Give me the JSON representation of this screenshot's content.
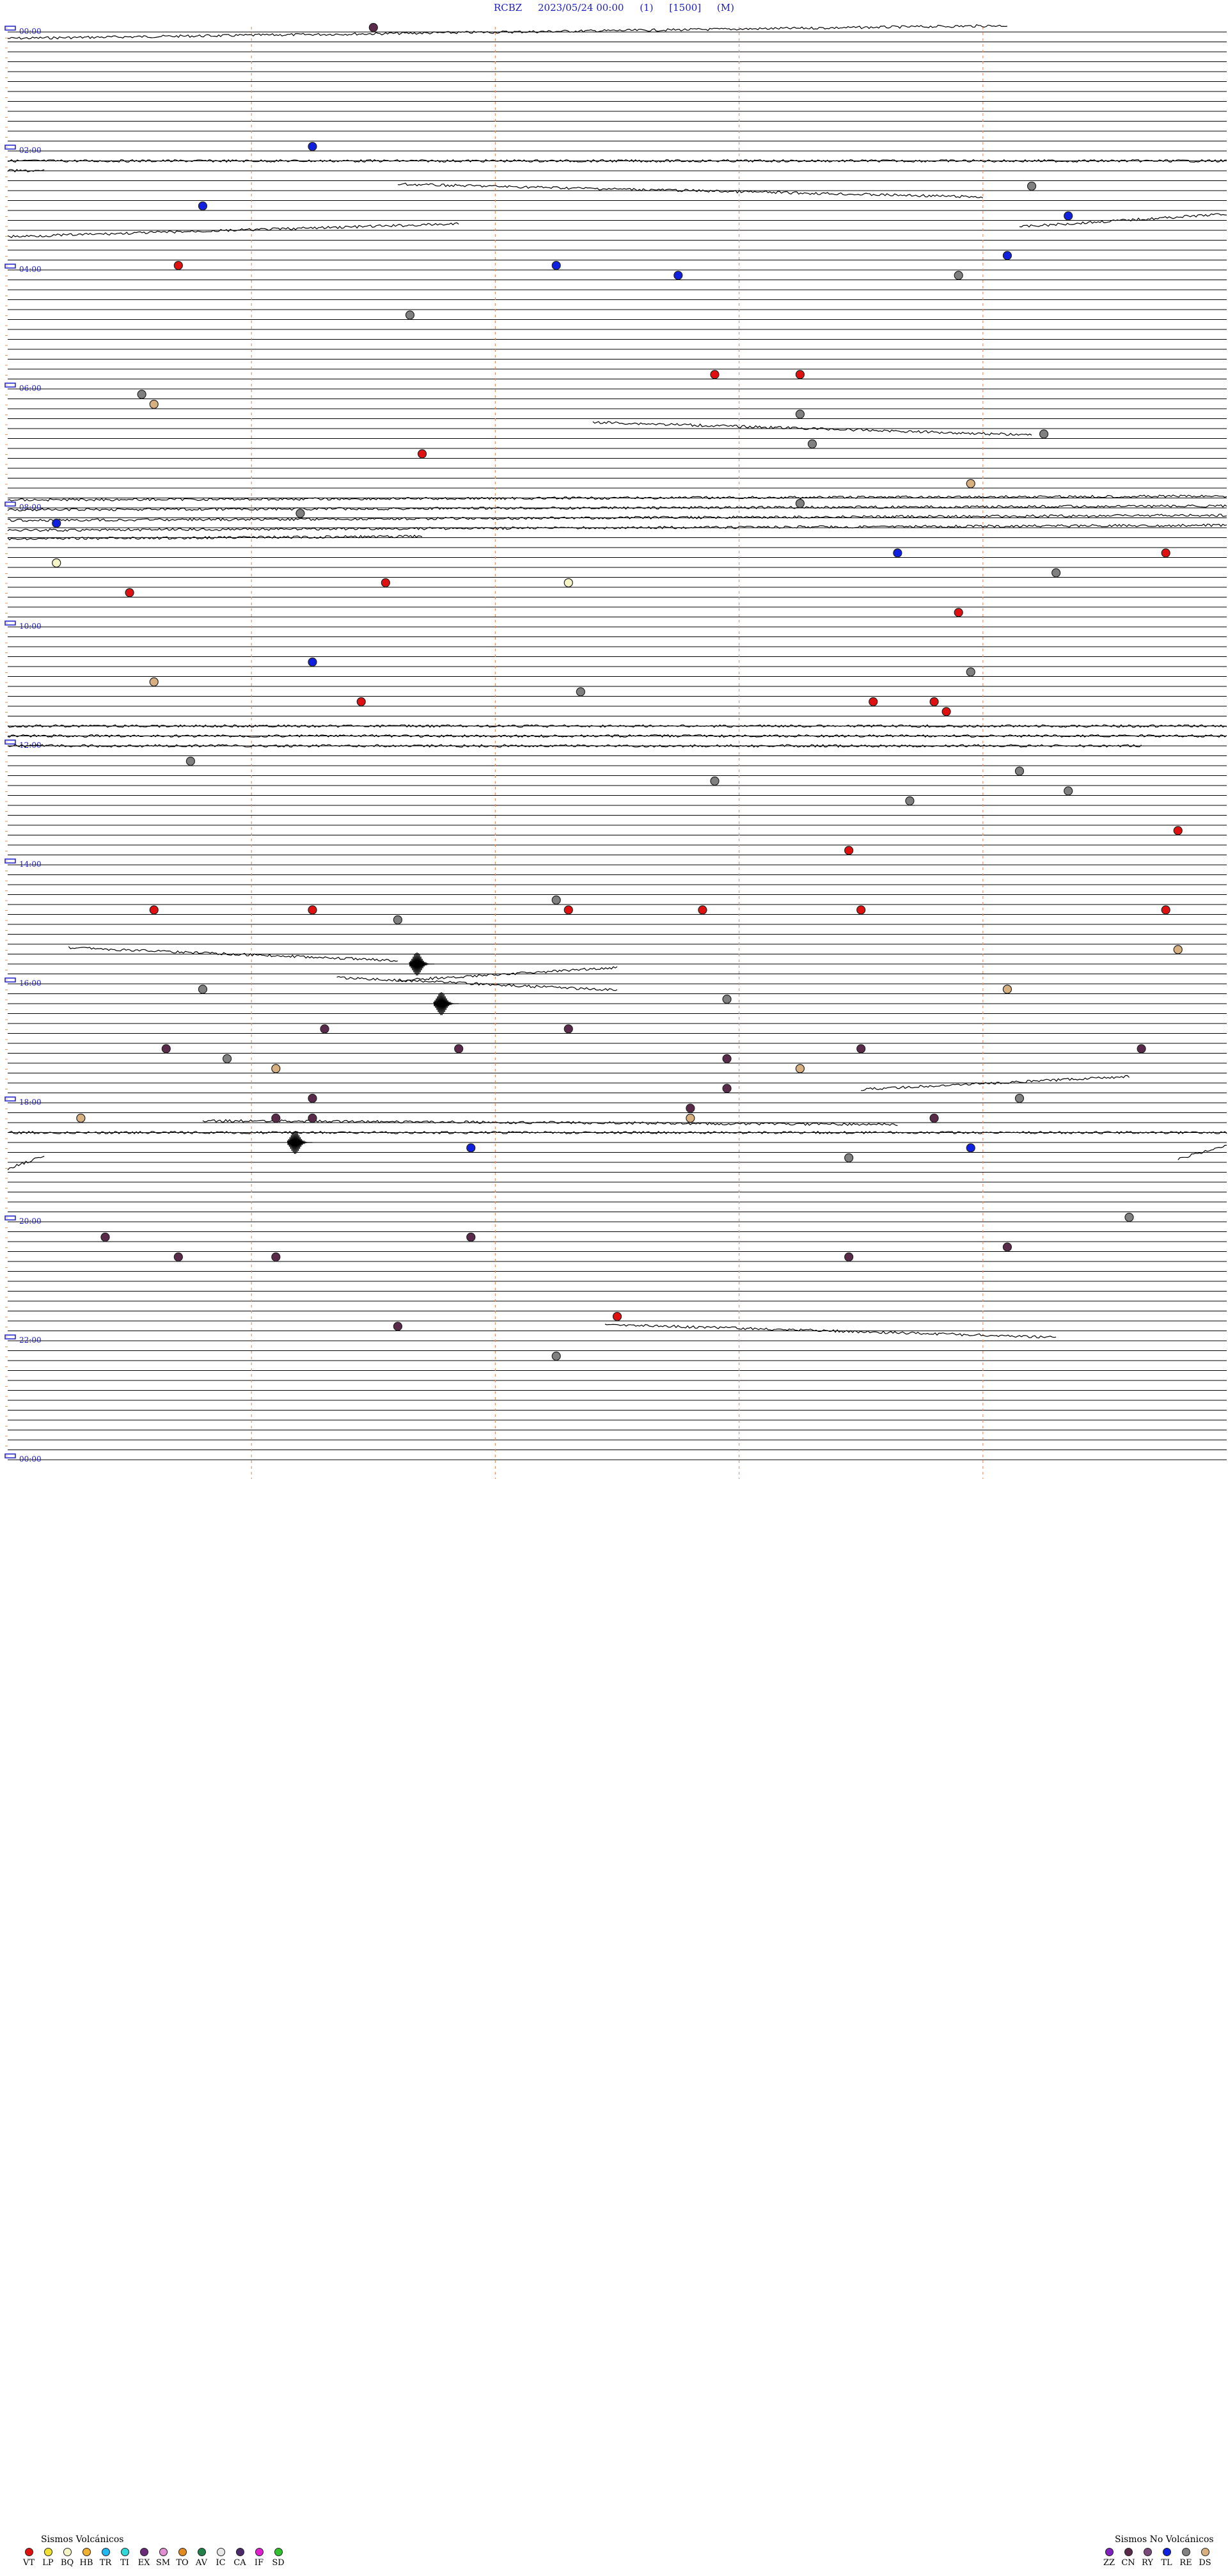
{
  "header": {
    "station": "RCBZ",
    "datetime": "2023/05/24 00:00",
    "tag1": "(1)",
    "tag2": "[1500]",
    "tag3": "(M)"
  },
  "colors": {
    "trace": "#000000",
    "hour_label": "#1c1cc8",
    "grid_orange": "#e8956a",
    "VT": "#e01010",
    "LP": "#f0e030",
    "BQ": "#f5f5c8",
    "HB": "#f0b030",
    "TR": "#20b8f0",
    "TI": "#30d8d8",
    "EX": "#6a2a7a",
    "SM": "#e090d0",
    "TO": "#e08a20",
    "AV": "#20804a",
    "IC": "#e8e8e8",
    "CA": "#4a2a6a",
    "IF": "#e020d0",
    "SD": "#30c030",
    "ZZ": "#8020c0",
    "CN": "#5a2a4a",
    "RY": "#7a4a7a",
    "TL": "#1020e0",
    "RE": "#808080",
    "DS": "#d8b080"
  },
  "chart_data": {
    "type": "scatter",
    "title": "",
    "hour_labels": [
      "00:00",
      "02:00",
      "04:00",
      "06:00",
      "08:00",
      "10:00",
      "12:00",
      "14:00",
      "16:00",
      "18:00",
      "20:00",
      "22:00",
      "00:00"
    ],
    "minutes_per_line": 10,
    "event_types_volcanic": [
      "VT",
      "LP",
      "BQ",
      "HB",
      "TR",
      "TI",
      "EX",
      "SM",
      "TO",
      "AV",
      "IC",
      "CA",
      "IF",
      "SD"
    ],
    "event_types_non_volcanic": [
      "ZZ",
      "CN",
      "RY",
      "TL",
      "RE",
      "DS"
    ],
    "events": [
      {
        "line": 0,
        "minute": 3,
        "type": "CN"
      },
      {
        "line": 12,
        "minute": 2.5,
        "type": "TL"
      },
      {
        "line": 16,
        "minute": 8.4,
        "type": "RE"
      },
      {
        "line": 18,
        "minute": 1.6,
        "type": "TL"
      },
      {
        "line": 19,
        "minute": 8.7,
        "type": "TL"
      },
      {
        "line": 23,
        "minute": 8.2,
        "type": "TL"
      },
      {
        "line": 24,
        "minute": 1.4,
        "type": "VT"
      },
      {
        "line": 24,
        "minute": 4.5,
        "type": "TL"
      },
      {
        "line": 25,
        "minute": 5.5,
        "type": "TL"
      },
      {
        "line": 25,
        "minute": 7.8,
        "type": "RE"
      },
      {
        "line": 29,
        "minute": 3.3,
        "type": "RE"
      },
      {
        "line": 35,
        "minute": 5.8,
        "type": "VT"
      },
      {
        "line": 35,
        "minute": 6.5,
        "type": "VT"
      },
      {
        "line": 37,
        "minute": 1.1,
        "type": "RE"
      },
      {
        "line": 38,
        "minute": 1.2,
        "type": "DS"
      },
      {
        "line": 39,
        "minute": 6.5,
        "type": "RE"
      },
      {
        "line": 41,
        "minute": 8.5,
        "type": "RE"
      },
      {
        "line": 42,
        "minute": 6.6,
        "type": "RE"
      },
      {
        "line": 43,
        "minute": 3.4,
        "type": "VT"
      },
      {
        "line": 46,
        "minute": 7.9,
        "type": "DS"
      },
      {
        "line": 48,
        "minute": 6.5,
        "type": "RE"
      },
      {
        "line": 49,
        "minute": 2.4,
        "type": "RE"
      },
      {
        "line": 50,
        "minute": 0.4,
        "type": "TL"
      },
      {
        "line": 53,
        "minute": 7.3,
        "type": "TL"
      },
      {
        "line": 53,
        "minute": 9.5,
        "type": "VT"
      },
      {
        "line": 54,
        "minute": 0.4,
        "type": "BQ"
      },
      {
        "line": 55,
        "minute": 8.6,
        "type": "RE"
      },
      {
        "line": 56,
        "minute": 3.1,
        "type": "VT"
      },
      {
        "line": 56,
        "minute": 4.6,
        "type": "BQ"
      },
      {
        "line": 57,
        "minute": 1.0,
        "type": "VT"
      },
      {
        "line": 59,
        "minute": 7.8,
        "type": "VT"
      },
      {
        "line": 64,
        "minute": 2.5,
        "type": "TL"
      },
      {
        "line": 65,
        "minute": 7.9,
        "type": "RE"
      },
      {
        "line": 66,
        "minute": 1.2,
        "type": "DS"
      },
      {
        "line": 67,
        "minute": 4.7,
        "type": "RE"
      },
      {
        "line": 68,
        "minute": 2.9,
        "type": "VT"
      },
      {
        "line": 68,
        "minute": 7.1,
        "type": "VT"
      },
      {
        "line": 68,
        "minute": 7.6,
        "type": "VT"
      },
      {
        "line": 69,
        "minute": 7.7,
        "type": "VT"
      },
      {
        "line": 74,
        "minute": 1.5,
        "type": "RE"
      },
      {
        "line": 75,
        "minute": 8.3,
        "type": "RE"
      },
      {
        "line": 76,
        "minute": 5.8,
        "type": "RE"
      },
      {
        "line": 77,
        "minute": 8.7,
        "type": "RE"
      },
      {
        "line": 78,
        "minute": 7.4,
        "type": "RE"
      },
      {
        "line": 81,
        "minute": 9.6,
        "type": "VT"
      },
      {
        "line": 83,
        "minute": 6.9,
        "type": "VT"
      },
      {
        "line": 88,
        "minute": 4.5,
        "type": "RE"
      },
      {
        "line": 89,
        "minute": 1.2,
        "type": "VT"
      },
      {
        "line": 89,
        "minute": 2.5,
        "type": "VT"
      },
      {
        "line": 89,
        "minute": 4.6,
        "type": "VT"
      },
      {
        "line": 89,
        "minute": 5.7,
        "type": "VT"
      },
      {
        "line": 89,
        "minute": 7.0,
        "type": "VT"
      },
      {
        "line": 89,
        "minute": 9.5,
        "type": "VT"
      },
      {
        "line": 90,
        "minute": 3.2,
        "type": "RE"
      },
      {
        "line": 93,
        "minute": 9.6,
        "type": "DS"
      },
      {
        "line": 97,
        "minute": 1.6,
        "type": "RE"
      },
      {
        "line": 97,
        "minute": 8.2,
        "type": "DS"
      },
      {
        "line": 98,
        "minute": 5.9,
        "type": "RE"
      },
      {
        "line": 101,
        "minute": 2.6,
        "type": "CN"
      },
      {
        "line": 101,
        "minute": 4.6,
        "type": "CN"
      },
      {
        "line": 103,
        "minute": 1.3,
        "type": "CN"
      },
      {
        "line": 103,
        "minute": 3.7,
        "type": "CN"
      },
      {
        "line": 103,
        "minute": 7.0,
        "type": "CN"
      },
      {
        "line": 103,
        "minute": 9.3,
        "type": "CN"
      },
      {
        "line": 104,
        "minute": 1.8,
        "type": "RE"
      },
      {
        "line": 104,
        "minute": 5.9,
        "type": "CN"
      },
      {
        "line": 105,
        "minute": 2.2,
        "type": "DS"
      },
      {
        "line": 105,
        "minute": 6.5,
        "type": "DS"
      },
      {
        "line": 107,
        "minute": 5.9,
        "type": "CN"
      },
      {
        "line": 108,
        "minute": 2.5,
        "type": "CN"
      },
      {
        "line": 108,
        "minute": 8.3,
        "type": "RE"
      },
      {
        "line": 109,
        "minute": 5.6,
        "type": "CN"
      },
      {
        "line": 110,
        "minute": 0.6,
        "type": "DS"
      },
      {
        "line": 110,
        "minute": 2.2,
        "type": "CN"
      },
      {
        "line": 110,
        "minute": 2.5,
        "type": "CN"
      },
      {
        "line": 110,
        "minute": 5.6,
        "type": "DS"
      },
      {
        "line": 110,
        "minute": 7.6,
        "type": "CN"
      },
      {
        "line": 113,
        "minute": 3.8,
        "type": "TL"
      },
      {
        "line": 113,
        "minute": 7.9,
        "type": "TL"
      },
      {
        "line": 114,
        "minute": 6.9,
        "type": "RE"
      },
      {
        "line": 120,
        "minute": 9.2,
        "type": "RE"
      },
      {
        "line": 122,
        "minute": 0.8,
        "type": "CN"
      },
      {
        "line": 122,
        "minute": 3.8,
        "type": "CN"
      },
      {
        "line": 123,
        "minute": 8.2,
        "type": "CN"
      },
      {
        "line": 124,
        "minute": 1.4,
        "type": "CN"
      },
      {
        "line": 124,
        "minute": 2.2,
        "type": "CN"
      },
      {
        "line": 124,
        "minute": 6.9,
        "type": "CN"
      },
      {
        "line": 130,
        "minute": 5.0,
        "type": "VT"
      },
      {
        "line": 131,
        "minute": 3.2,
        "type": "CN"
      },
      {
        "line": 134,
        "minute": 4.5,
        "type": "RE"
      }
    ],
    "waveforms": [
      {
        "line": 0,
        "from_minute": 0,
        "to_minute": 8.2,
        "drift": 1
      },
      {
        "line": 13,
        "from_minute": 0,
        "to_minute": 10,
        "drift": 0
      },
      {
        "line": 14,
        "from_minute": 0,
        "to_minute": 0.3,
        "drift": 0
      },
      {
        "line": 16,
        "from_minute": 3.2,
        "to_minute": 8.0,
        "drift": -1
      },
      {
        "line": 19,
        "from_minute": 8.3,
        "to_minute": 10,
        "drift": 1
      },
      {
        "line": 20,
        "from_minute": 0,
        "to_minute": 3.7,
        "drift": 1
      },
      {
        "line": 40,
        "from_minute": 4.8,
        "to_minute": 8.4,
        "drift": -1
      },
      {
        "line": 47,
        "from_minute": 0,
        "to_minute": 10,
        "drift": 0.3
      },
      {
        "line": 48,
        "from_minute": 0,
        "to_minute": 10,
        "drift": 0.3
      },
      {
        "line": 49,
        "from_minute": 0,
        "to_minute": 10,
        "drift": 0.4
      },
      {
        "line": 50,
        "from_minute": 0,
        "to_minute": 10,
        "drift": 0.4
      },
      {
        "line": 51,
        "from_minute": 0,
        "to_minute": 3.4,
        "drift": 0.2
      },
      {
        "line": 70,
        "from_minute": 0,
        "to_minute": 10,
        "drift": 0
      },
      {
        "line": 71,
        "from_minute": 0,
        "to_minute": 10,
        "drift": 0
      },
      {
        "line": 72,
        "from_minute": 0,
        "to_minute": 9.3,
        "drift": 0
      },
      {
        "line": 93,
        "from_minute": 0.5,
        "to_minute": 3.2,
        "drift": -1
      },
      {
        "line": 95,
        "from_minute": 3.2,
        "to_minute": 5.0,
        "drift": 1
      },
      {
        "line": 96,
        "from_minute": 2.7,
        "to_minute": 5.0,
        "drift": -1
      },
      {
        "line": 106,
        "from_minute": 7.0,
        "to_minute": 9.2,
        "drift": 1
      },
      {
        "line": 110,
        "from_minute": 1.6,
        "to_minute": 7.3,
        "drift": -0.3
      },
      {
        "line": 111,
        "from_minute": 0,
        "to_minute": 10,
        "drift": 0
      },
      {
        "line": 113,
        "from_minute": 9.6,
        "to_minute": 10,
        "drift": 1
      },
      {
        "line": 114,
        "from_minute": 0,
        "to_minute": 0.3,
        "drift": 1
      },
      {
        "line": 131,
        "from_minute": 4.9,
        "to_minute": 8.6,
        "drift": -1
      }
    ],
    "bursts": [
      {
        "line": 94,
        "minute": 3.4
      },
      {
        "line": 98,
        "minute": 3.6
      },
      {
        "line": 112,
        "minute": 2.4
      }
    ]
  },
  "legend": {
    "volcanic_title": "Sismos Volcánicos",
    "non_volcanic_title": "Sismos No Volcánicos"
  }
}
